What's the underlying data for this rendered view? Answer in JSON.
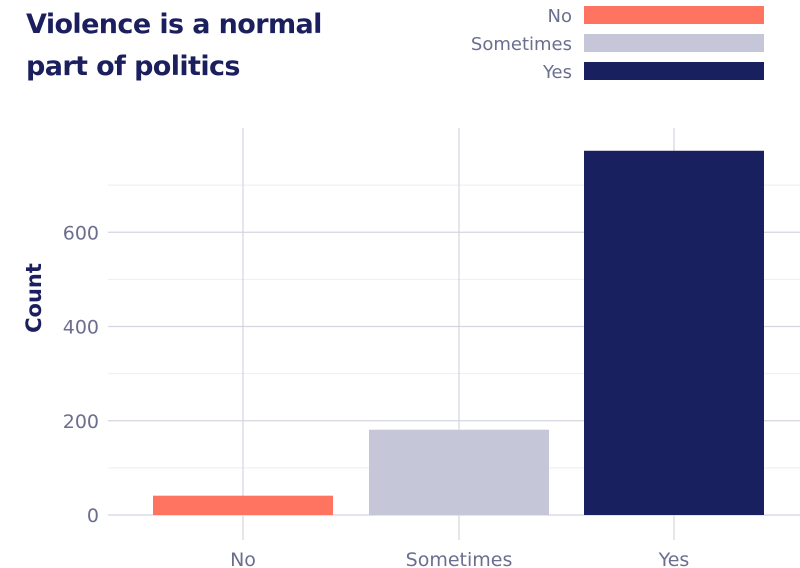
{
  "chart_data": {
    "type": "bar",
    "title": "Violence is a normal part of politics",
    "xlabel": "",
    "ylabel": "Count",
    "categories": [
      "No",
      "Sometimes",
      "Yes"
    ],
    "values": [
      41,
      181,
      773
    ],
    "colors": [
      "#ff7461",
      "#c5c6d8",
      "#19205f"
    ],
    "y_ticks": [
      0,
      200,
      400,
      600
    ],
    "ylim": [
      -15,
      830
    ],
    "grid": true,
    "legend": {
      "placement": "top-right",
      "entries": [
        "No",
        "Sometimes",
        "Yes"
      ]
    }
  }
}
